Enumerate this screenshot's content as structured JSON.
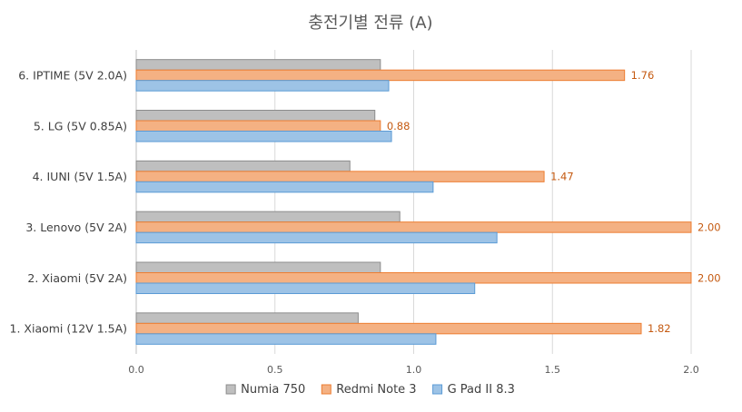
{
  "chart_data": {
    "type": "bar",
    "orientation": "horizontal",
    "title": "충전기별 전류 (A)",
    "xlabel": "",
    "ylabel": "",
    "xlim": [
      0,
      2.0
    ],
    "x_ticks": [
      "0.0",
      "0.5",
      "1.0",
      "1.5",
      "2.0"
    ],
    "grid": true,
    "legend_position": "bottom",
    "categories": [
      "1. Xiaomi (12V 1.5A)",
      "2. Xiaomi (5V 2A)",
      "3. Lenovo (5V 2A)",
      "4. IUNI (5V 1.5A)",
      "5. LG (5V 0.85A)",
      "6. IPTIME (5V 2.0A)"
    ],
    "series": [
      {
        "name": "Numia 750",
        "color": "#bfbfbf",
        "values": [
          0.8,
          0.88,
          0.95,
          0.77,
          0.86,
          0.88
        ]
      },
      {
        "name": "Redmi Note 3",
        "color": "#f4b183",
        "values": [
          1.82,
          2.0,
          2.0,
          1.47,
          0.88,
          1.76
        ],
        "labels": [
          "1.82",
          "2.00",
          "2.00",
          "1.47",
          "0.88",
          "1.76"
        ]
      },
      {
        "name": "G Pad II 8.3",
        "color": "#9dc3e6",
        "values": [
          1.08,
          1.22,
          1.3,
          1.07,
          0.92,
          0.91
        ]
      }
    ]
  }
}
